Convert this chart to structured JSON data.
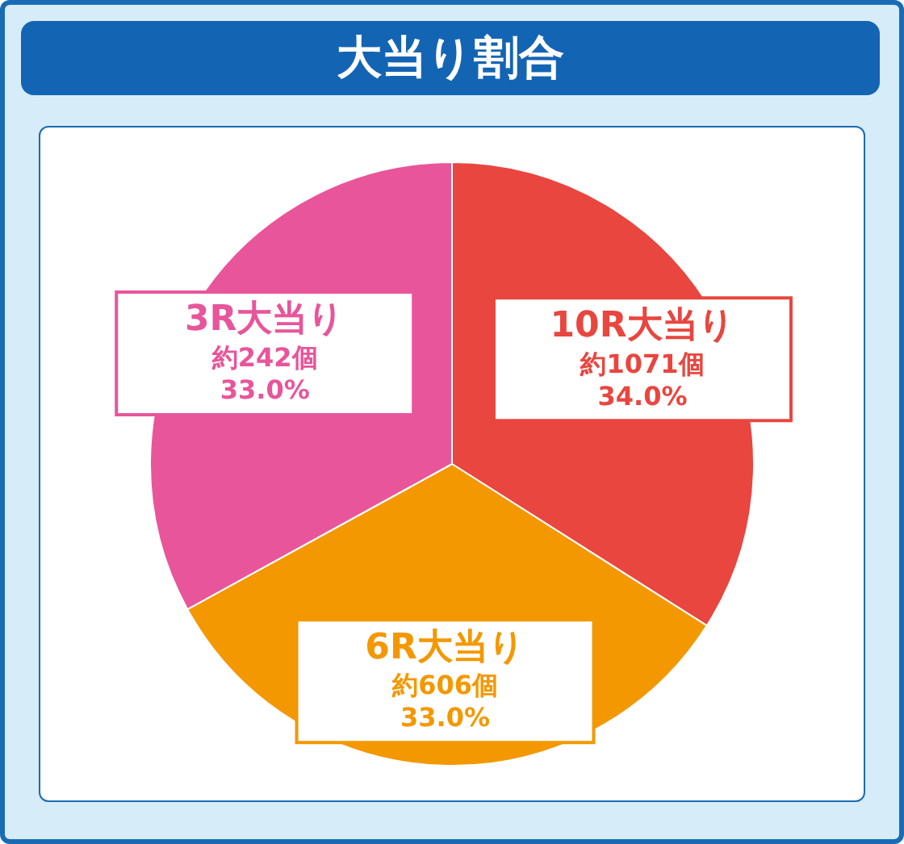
{
  "chart_data": {
    "type": "pie",
    "title": "大当り割合",
    "categories": [
      "10R大当り",
      "6R大当り",
      "3R大当り"
    ],
    "values": [
      34.0,
      33.0,
      33.0
    ],
    "colors": [
      "#e8463f",
      "#f39800",
      "#e8559a"
    ],
    "value_labels": [
      "約1071個\n34.0%",
      "約606個\n33.0%",
      "約242個\n33.0%"
    ],
    "legend": false
  }
}
